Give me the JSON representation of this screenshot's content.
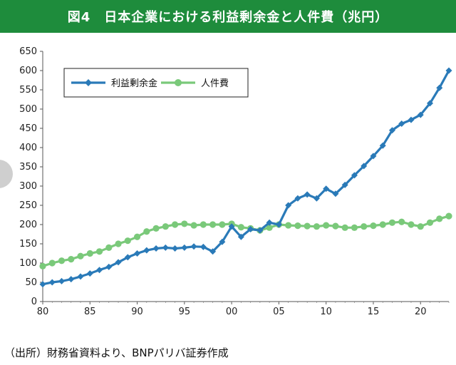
{
  "title": "図4　日本企業における利益剰余金と人件費（兆円）",
  "source": "（出所）財務省資料より、BNPパリバ証券作成",
  "chart_data": {
    "type": "line",
    "title": "図4　日本企業における利益剰余金と人件費（兆円）",
    "xlabel": "",
    "ylabel": "",
    "xlim": [
      1980,
      2023
    ],
    "ylim": [
      0,
      650
    ],
    "yticks": [
      0,
      50,
      100,
      150,
      200,
      250,
      300,
      350,
      400,
      450,
      500,
      550,
      600,
      650
    ],
    "xticks": [
      1980,
      1985,
      1990,
      1995,
      2000,
      2005,
      2010,
      2015,
      2020
    ],
    "xtick_labels": [
      "80",
      "85",
      "90",
      "95",
      "00",
      "05",
      "10",
      "15",
      "20"
    ],
    "grid": false,
    "legend_position": "top-left",
    "x": [
      1980,
      1981,
      1982,
      1983,
      1984,
      1985,
      1986,
      1987,
      1988,
      1989,
      1990,
      1991,
      1992,
      1993,
      1994,
      1995,
      1996,
      1997,
      1998,
      1999,
      2000,
      2001,
      2002,
      2003,
      2004,
      2005,
      2006,
      2007,
      2008,
      2009,
      2010,
      2011,
      2012,
      2013,
      2014,
      2015,
      2016,
      2017,
      2018,
      2019,
      2020,
      2021,
      2022,
      2023
    ],
    "series": [
      {
        "name": "利益剰余金",
        "color": "#2a7ab8",
        "marker": "diamond",
        "values": [
          45,
          50,
          53,
          58,
          65,
          73,
          82,
          90,
          102,
          115,
          125,
          133,
          138,
          140,
          138,
          140,
          143,
          142,
          130,
          155,
          195,
          168,
          188,
          185,
          205,
          200,
          250,
          268,
          278,
          268,
          293,
          280,
          303,
          328,
          352,
          378,
          405,
          445,
          462,
          472,
          485,
          515,
          555,
          600
        ]
      },
      {
        "name": "人件費",
        "color": "#7ac97a",
        "marker": "circle",
        "values": [
          92,
          100,
          106,
          110,
          118,
          125,
          130,
          140,
          150,
          158,
          168,
          182,
          190,
          195,
          200,
          202,
          198,
          200,
          200,
          200,
          202,
          193,
          190,
          185,
          192,
          200,
          198,
          197,
          196,
          195,
          198,
          196,
          192,
          192,
          195,
          197,
          200,
          205,
          207,
          200,
          195,
          205,
          215,
          222
        ]
      }
    ]
  }
}
